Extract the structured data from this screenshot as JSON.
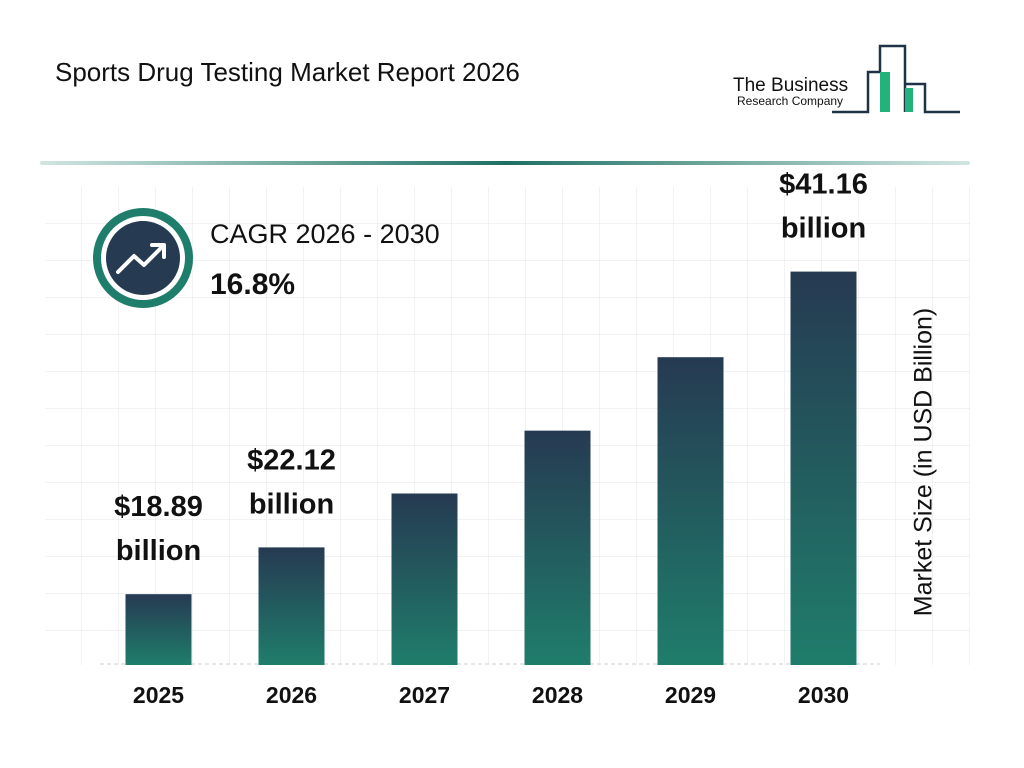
{
  "chart_data": {
    "type": "bar",
    "title": "Sports Drug Testing Market Report 2026",
    "categories": [
      "2025",
      "2026",
      "2027",
      "2028",
      "2029",
      "2030"
    ],
    "values": [
      18.89,
      22.12,
      25.84,
      30.18,
      35.25,
      41.16
    ],
    "value_labels": [
      "$18.89 billion",
      "$22.12 billion",
      null,
      null,
      null,
      "$41.16 billion"
    ],
    "color_top": "#263a52",
    "color_bottom": "#1f7d6b",
    "ylim": [
      14,
      47
    ],
    "y_label": "Market Size (in USD Billion)",
    "cagr_label": "CAGR 2026 - 2030",
    "cagr_value": "16.8%"
  },
  "logo": {
    "line1": "The Business",
    "line2": "Research Company"
  }
}
